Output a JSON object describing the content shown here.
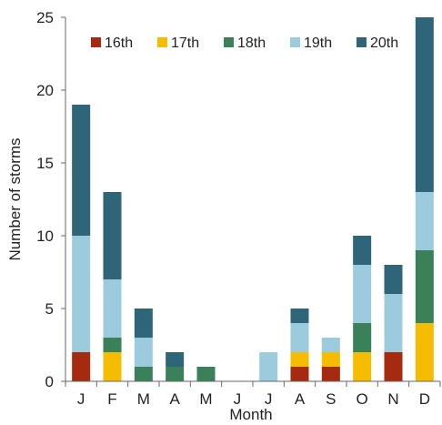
{
  "chart_data": {
    "type": "bar",
    "stacked": true,
    "categories": [
      "J",
      "F",
      "M",
      "A",
      "M",
      "J",
      "J",
      "A",
      "S",
      "O",
      "N",
      "D"
    ],
    "series": [
      {
        "name": "16th",
        "color": "#a52a0f",
        "values": [
          2,
          0,
          0,
          0,
          0,
          0,
          0,
          1,
          1,
          0,
          2,
          0
        ]
      },
      {
        "name": "17th",
        "color": "#f5bc00",
        "values": [
          0,
          2,
          0,
          0,
          0,
          0,
          0,
          1,
          1,
          2,
          0,
          4
        ]
      },
      {
        "name": "18th",
        "color": "#3a8159",
        "values": [
          0,
          1,
          1,
          1,
          1,
          0,
          0,
          0,
          0,
          2,
          0,
          5
        ]
      },
      {
        "name": "19th",
        "color": "#9ccbde",
        "values": [
          8,
          4,
          2,
          0,
          0,
          0,
          2,
          2,
          1,
          4,
          4,
          4
        ]
      },
      {
        "name": "20th",
        "color": "#2f6578",
        "values": [
          9,
          6,
          2,
          1,
          0,
          0,
          0,
          1,
          0,
          2,
          2,
          12
        ]
      }
    ],
    "xlabel": "Month",
    "ylabel": "Number of storms",
    "ylim": [
      0,
      25
    ],
    "yticks": [
      "0",
      "5",
      "10",
      "15",
      "20",
      "25"
    ],
    "grid": false,
    "legend_position": "top, inside"
  }
}
